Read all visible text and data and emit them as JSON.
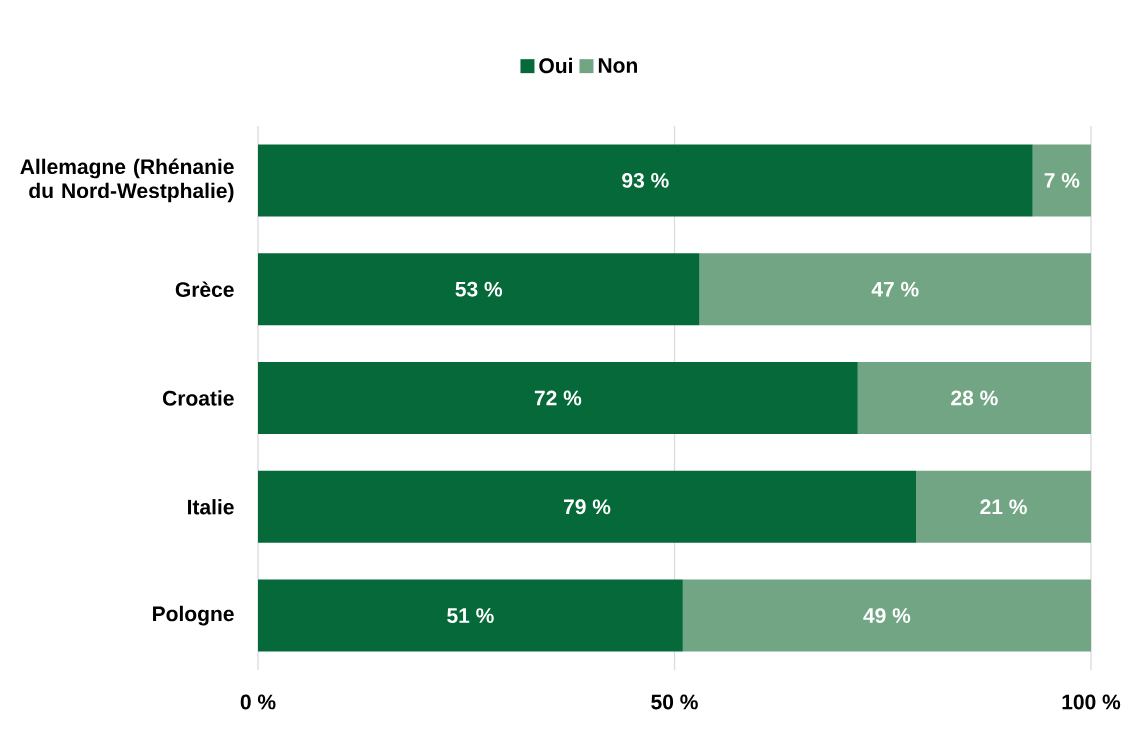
{
  "chart_data": {
    "type": "bar",
    "orientation": "horizontal",
    "stacked": true,
    "categories": [
      "Allemagne (Rhénanie du Nord-Westphalie)",
      "Grèce",
      "Croatie",
      "Italie",
      "Pologne"
    ],
    "series": [
      {
        "name": "Oui",
        "color": "#06693a",
        "values": [
          93,
          53,
          72,
          79,
          51
        ],
        "value_labels": [
          "93 %",
          "53 %",
          "72 %",
          "79 %",
          "51 %"
        ]
      },
      {
        "name": "Non",
        "color": "#72a584",
        "values": [
          7,
          47,
          28,
          21,
          49
        ],
        "value_labels": [
          "7 %",
          "47 %",
          "28 %",
          "21 %",
          "49 %"
        ]
      }
    ],
    "xlim": [
      0,
      100
    ],
    "xticks": [
      {
        "value": 0,
        "label": "0 %"
      },
      {
        "value": 50,
        "label": "50 %"
      },
      {
        "value": 100,
        "label": "100 %"
      }
    ],
    "grid": "x",
    "legend": "top"
  }
}
